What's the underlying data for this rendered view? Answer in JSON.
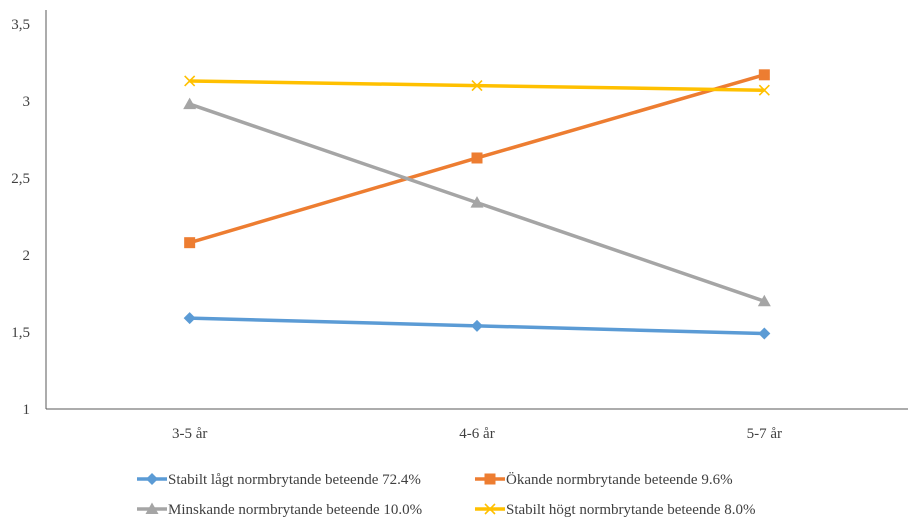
{
  "chart_data": {
    "type": "line",
    "categories": [
      "3-5 år",
      "4-6 år",
      "5-7 år"
    ],
    "ylim": [
      1,
      3.5
    ],
    "yticks": [
      "1",
      "1,5",
      "2",
      "2,5",
      "3",
      "3,5"
    ],
    "grid": false,
    "legend_position": "bottom",
    "series": [
      {
        "name": "Stabilt lågt normbrytande beteende  72.4%",
        "values": [
          1.59,
          1.54,
          1.49
        ],
        "color": "#5B9BD5",
        "marker": "diamond"
      },
      {
        "name": "Ökande normbrytande beteende 9.6%",
        "values": [
          2.08,
          2.63,
          3.17
        ],
        "color": "#ED7D31",
        "marker": "square"
      },
      {
        "name": "Minskande normbrytande beteende 10.0%",
        "values": [
          2.98,
          2.34,
          1.7
        ],
        "color": "#A5A5A5",
        "marker": "triangle"
      },
      {
        "name": "Stabilt högt normbrytande beteende  8.0%",
        "values": [
          3.13,
          3.1,
          3.07
        ],
        "color": "#FFC000",
        "marker": "x"
      }
    ]
  }
}
